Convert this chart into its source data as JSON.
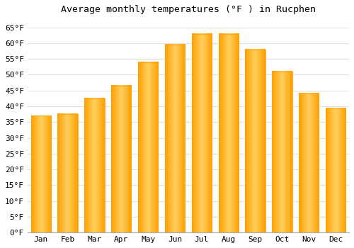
{
  "title": "Average monthly temperatures (°F ) in Rucphen",
  "months": [
    "Jan",
    "Feb",
    "Mar",
    "Apr",
    "May",
    "Jun",
    "Jul",
    "Aug",
    "Sep",
    "Oct",
    "Nov",
    "Dec"
  ],
  "values": [
    37,
    37.5,
    42.5,
    46.5,
    54,
    59.5,
    63,
    63,
    58,
    51,
    44,
    39.5
  ],
  "bar_color_center": "#FFD060",
  "bar_color_edge": "#FFA000",
  "background_color": "#FFFFFF",
  "grid_color": "#E0E0E0",
  "ylim": [
    0,
    68
  ],
  "yticks": [
    0,
    5,
    10,
    15,
    20,
    25,
    30,
    35,
    40,
    45,
    50,
    55,
    60,
    65
  ],
  "title_fontsize": 9.5,
  "tick_fontsize": 8,
  "figsize": [
    5.0,
    3.5
  ],
  "dpi": 100
}
